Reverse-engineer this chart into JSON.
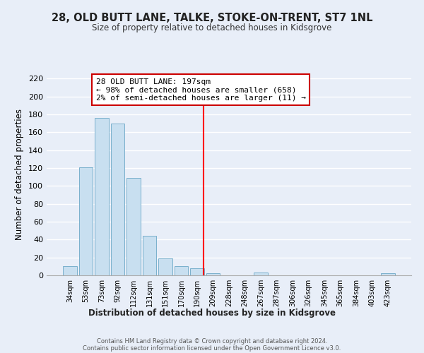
{
  "title": "28, OLD BUTT LANE, TALKE, STOKE-ON-TRENT, ST7 1NL",
  "subtitle": "Size of property relative to detached houses in Kidsgrove",
  "xlabel": "Distribution of detached houses by size in Kidsgrove",
  "ylabel": "Number of detached properties",
  "bar_labels": [
    "34sqm",
    "53sqm",
    "73sqm",
    "92sqm",
    "112sqm",
    "131sqm",
    "151sqm",
    "170sqm",
    "190sqm",
    "209sqm",
    "228sqm",
    "248sqm",
    "267sqm",
    "287sqm",
    "306sqm",
    "326sqm",
    "345sqm",
    "365sqm",
    "384sqm",
    "403sqm",
    "423sqm"
  ],
  "bar_heights": [
    10,
    121,
    176,
    170,
    109,
    44,
    19,
    10,
    8,
    2,
    0,
    0,
    3,
    0,
    0,
    0,
    0,
    0,
    0,
    0,
    2
  ],
  "bar_color": "#c8dff0",
  "bar_edge_color": "#7ab0cc",
  "vline_x": 8.42,
  "vline_color": "red",
  "annotation_text": "28 OLD BUTT LANE: 197sqm\n← 98% of detached houses are smaller (658)\n2% of semi-detached houses are larger (11) →",
  "annotation_box_color": "white",
  "annotation_box_edge": "#cc0000",
  "ylim": [
    0,
    225
  ],
  "yticks": [
    0,
    20,
    40,
    60,
    80,
    100,
    120,
    140,
    160,
    180,
    200,
    220
  ],
  "footer1": "Contains HM Land Registry data © Crown copyright and database right 2024.",
  "footer2": "Contains public sector information licensed under the Open Government Licence v3.0.",
  "bg_color": "#e8eef8",
  "plot_bg_color": "#e8eef8",
  "grid_color": "white"
}
